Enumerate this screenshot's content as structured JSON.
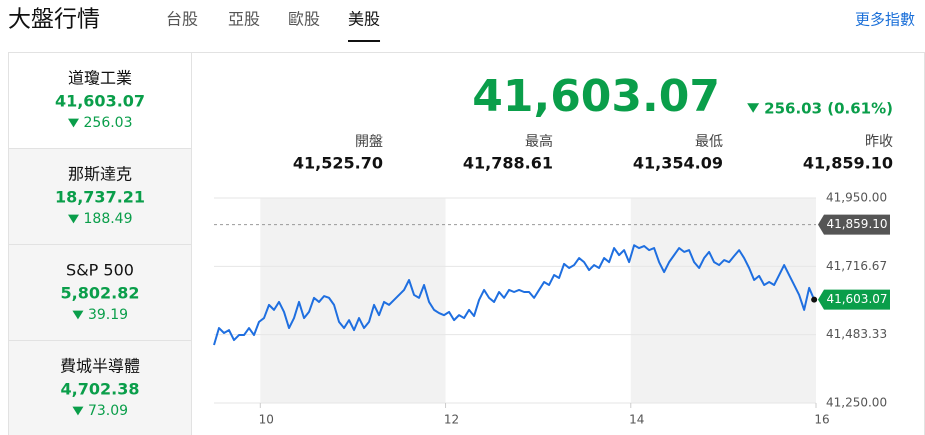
{
  "header": {
    "title": "大盤行情",
    "tabs": [
      {
        "label": "台股",
        "active": false
      },
      {
        "label": "亞股",
        "active": false
      },
      {
        "label": "歐股",
        "active": false
      },
      {
        "label": "美股",
        "active": true
      }
    ],
    "more_link": "更多指數"
  },
  "indices": [
    {
      "name": "道瓊工業",
      "value": "41,603.07",
      "change": "256.03",
      "active": true
    },
    {
      "name": "那斯達克",
      "value": "18,737.21",
      "change": "188.49",
      "active": false
    },
    {
      "name": "S&P 500",
      "value": "5,802.82",
      "change": "39.19",
      "active": false
    },
    {
      "name": "費城半導體",
      "value": "4,702.38",
      "change": "73.09",
      "active": false
    }
  ],
  "summary": {
    "value": "41,603.07",
    "change": "256.03 (0.61%)",
    "stats": [
      {
        "label": "開盤",
        "value": "41,525.70"
      },
      {
        "label": "最高",
        "value": "41,788.61"
      },
      {
        "label": "最低",
        "value": "41,354.09"
      },
      {
        "label": "昨收",
        "value": "41,859.10"
      }
    ]
  },
  "chart_data": {
    "type": "line",
    "color": "#1f6fe0",
    "x": [
      9.5,
      9.554,
      9.608,
      9.662,
      9.716,
      9.77,
      9.824,
      9.878,
      9.932,
      9.986,
      10.04,
      10.094,
      10.148,
      10.202,
      10.256,
      10.31,
      10.364,
      10.418,
      10.472,
      10.526,
      10.58,
      10.634,
      10.688,
      10.742,
      10.796,
      10.85,
      10.904,
      10.958,
      11.012,
      11.066,
      11.12,
      11.174,
      11.228,
      11.282,
      11.336,
      11.39,
      11.444,
      11.498,
      11.552,
      11.606,
      11.66,
      11.714,
      11.768,
      11.822,
      11.876,
      11.93,
      11.984,
      12.038,
      12.092,
      12.146,
      12.2,
      12.254,
      12.308,
      12.362,
      12.416,
      12.47,
      12.524,
      12.578,
      12.632,
      12.686,
      12.74,
      12.794,
      12.848,
      12.902,
      12.956,
      13.01,
      13.064,
      13.118,
      13.172,
      13.226,
      13.28,
      13.334,
      13.388,
      13.442,
      13.496,
      13.55,
      13.604,
      13.658,
      13.712,
      13.766,
      13.82,
      13.874,
      13.928,
      13.982,
      14.036,
      14.09,
      14.144,
      14.198,
      14.252,
      14.306,
      14.36,
      14.414,
      14.468,
      14.522,
      14.576,
      14.63,
      14.684,
      14.738,
      14.792,
      14.846,
      14.9,
      14.954,
      15.008,
      15.062,
      15.116,
      15.17,
      15.224,
      15.278,
      15.332,
      15.386,
      15.44,
      15.494,
      15.548,
      15.602,
      15.656,
      15.71,
      15.764,
      15.818,
      15.872,
      15.926,
      15.98
    ],
    "values": [
      41448,
      41506,
      41489,
      41499,
      41465,
      41482,
      41482,
      41506,
      41482,
      41527,
      41540,
      41585,
      41568,
      41595,
      41561,
      41506,
      41540,
      41595,
      41540,
      41561,
      41609,
      41595,
      41615,
      41609,
      41585,
      41527,
      41506,
      41533,
      41499,
      41540,
      41506,
      41527,
      41585,
      41550,
      41595,
      41585,
      41602,
      41619,
      41636,
      41670,
      41619,
      41609,
      41653,
      41595,
      41568,
      41557,
      41550,
      41561,
      41533,
      41550,
      41540,
      41568,
      41547,
      41602,
      41636,
      41609,
      41595,
      41629,
      41609,
      41636,
      41629,
      41636,
      41629,
      41629,
      41609,
      41636,
      41663,
      41653,
      41687,
      41677,
      41725,
      41711,
      41721,
      41745,
      41731,
      41704,
      41721,
      41711,
      41745,
      41731,
      41779,
      41755,
      41772,
      41731,
      41788.61,
      41779,
      41786,
      41772,
      41779,
      41731,
      41697,
      41731,
      41755,
      41779,
      41766,
      41772,
      41731,
      41711,
      41745,
      41766,
      41731,
      41721,
      41738,
      41731,
      41752,
      41772,
      41745,
      41711,
      41670,
      41684,
      41653,
      41663,
      41653,
      41687,
      41721,
      41687,
      41653,
      41619,
      41568,
      41643,
      41603.07
    ],
    "xlim": [
      9.5,
      16
    ],
    "xticks": [
      10,
      12,
      14,
      16
    ],
    "ylim": [
      41250,
      41950
    ],
    "yticks": [
      {
        "value": 41950,
        "label": "41,950.00"
      },
      {
        "value": 41716.67,
        "label": "41,716.67"
      },
      {
        "value": 41483.33,
        "label": "41,483.33"
      },
      {
        "value": 41250,
        "label": "41,250.00"
      }
    ],
    "grid": true,
    "shaded_ranges": [
      [
        10,
        12
      ],
      [
        14,
        16
      ]
    ],
    "reference": {
      "value": 41859.1,
      "label": "41,859.10"
    }
  }
}
